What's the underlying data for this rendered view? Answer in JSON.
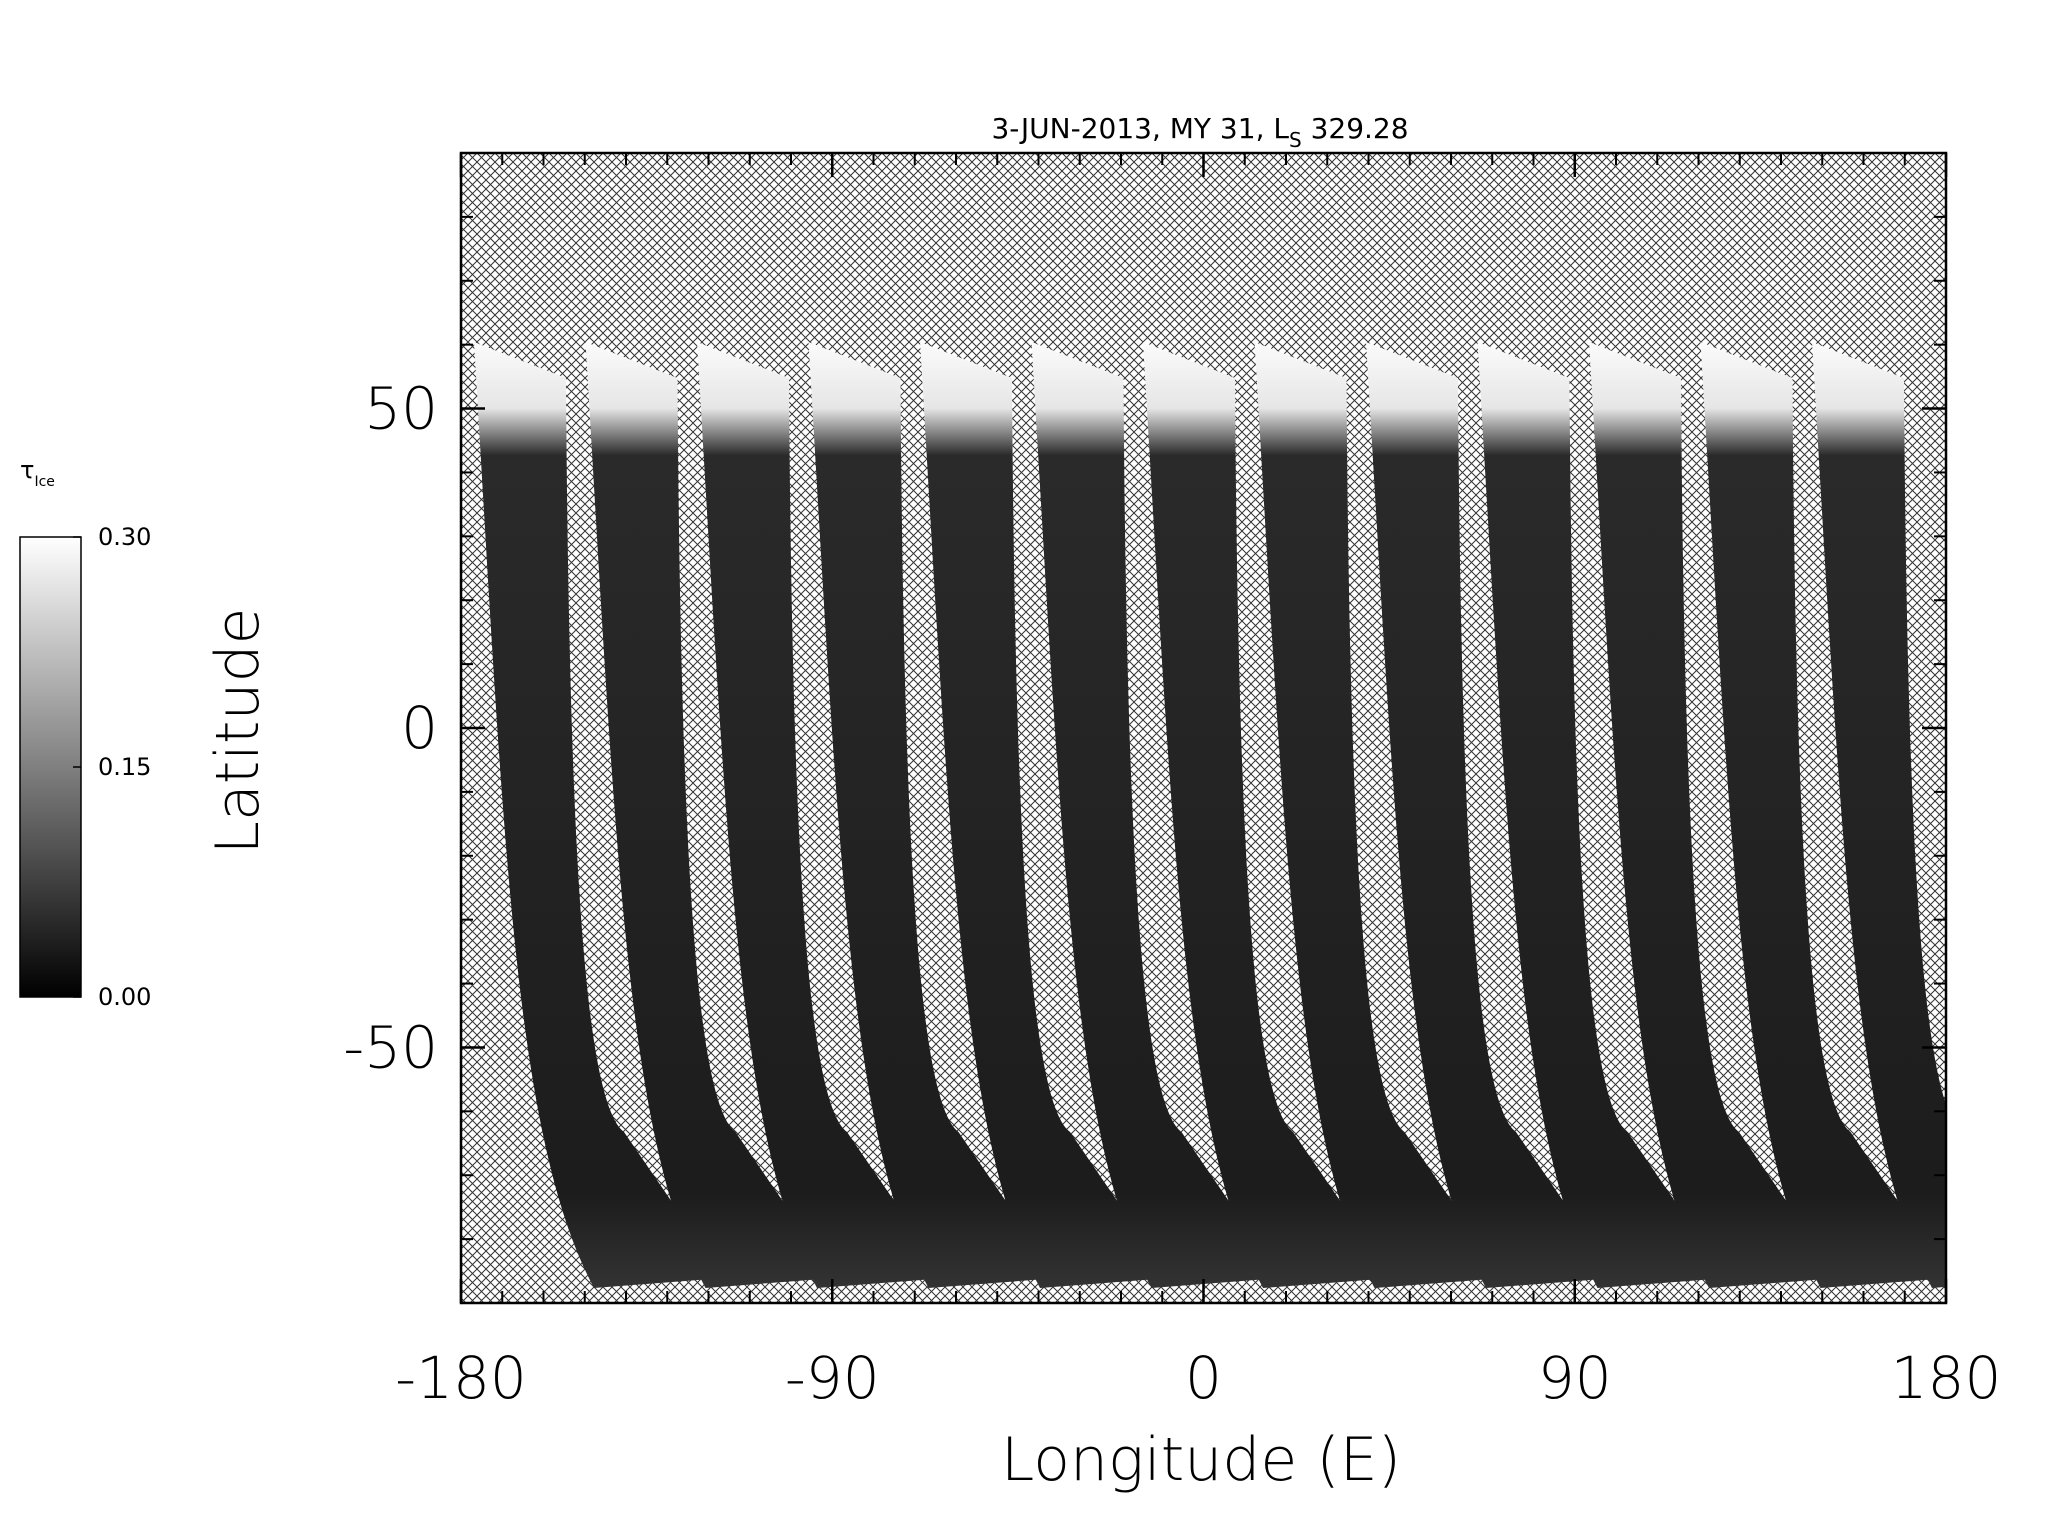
{
  "chart_data": {
    "type": "map",
    "title_parts": [
      "3-JUN-2013, MY 31,  L",
      "S",
      " 329.28"
    ],
    "x_label": "Longitude (E)",
    "y_label": "Latitude",
    "xlim": [
      -180,
      180
    ],
    "ylim": [
      -90,
      90
    ],
    "xticks": [
      -180,
      -90,
      0,
      90,
      180
    ],
    "yticks": [
      -50,
      0,
      50
    ],
    "colorbar": {
      "label_parts": [
        "τ",
        "Ice"
      ],
      "clim": [
        0,
        0.3
      ],
      "ticks": [
        {
          "value": 0,
          "label": "0.00"
        },
        {
          "value": 0.15,
          "label": "0.15"
        },
        {
          "value": 0.3,
          "label": "0.30"
        }
      ]
    }
  }
}
